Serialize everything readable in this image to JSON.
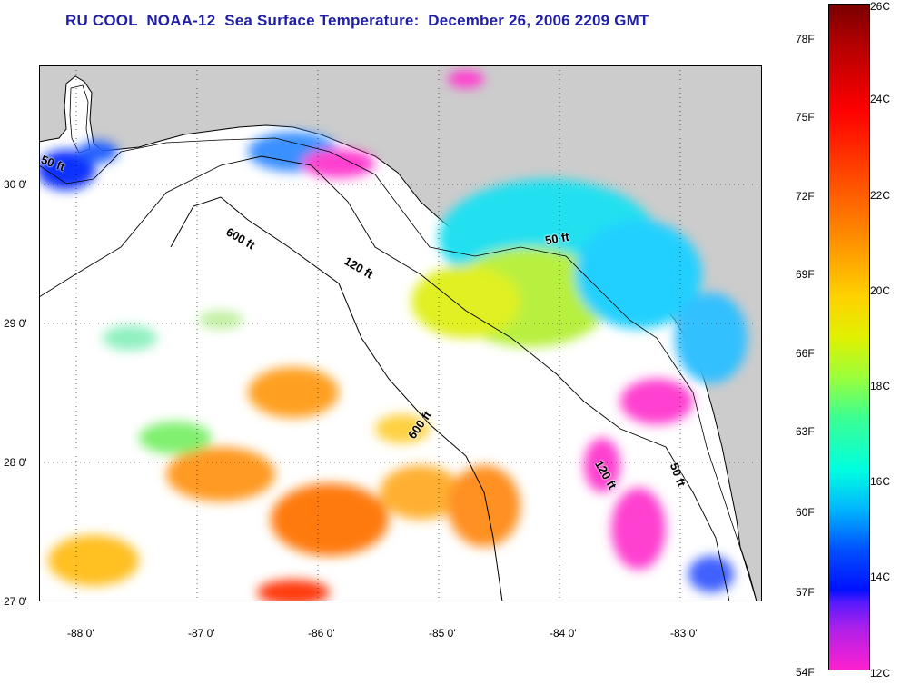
{
  "title": "RU COOL  NOAA-12  Sea Surface Temperature:  December 26, 2006 2209 GMT",
  "map": {
    "lat_ticks": [
      "30 0'",
      "29 0'",
      "28 0'",
      "27 0'"
    ],
    "lon_ticks": [
      "-88 0'",
      "-87 0'",
      "-86 0'",
      "-85 0'",
      "-84 0'",
      "-83 0'"
    ],
    "contour_labels": [
      "50 ft",
      "600 ft",
      "120 ft",
      "50 ft",
      "600 ft",
      "120 ft",
      "50 ft"
    ],
    "colors": {
      "land": "#cccccc",
      "no_data": "#ffffff",
      "coastline": "#000000"
    }
  },
  "colorbar": {
    "fahrenheit": [
      "78F",
      "75F",
      "72F",
      "69F",
      "66F",
      "63F",
      "60F",
      "57F",
      "54F"
    ],
    "celsius": [
      "26C",
      "24C",
      "22C",
      "20C",
      "18C",
      "16C",
      "14C",
      "12C"
    ]
  }
}
